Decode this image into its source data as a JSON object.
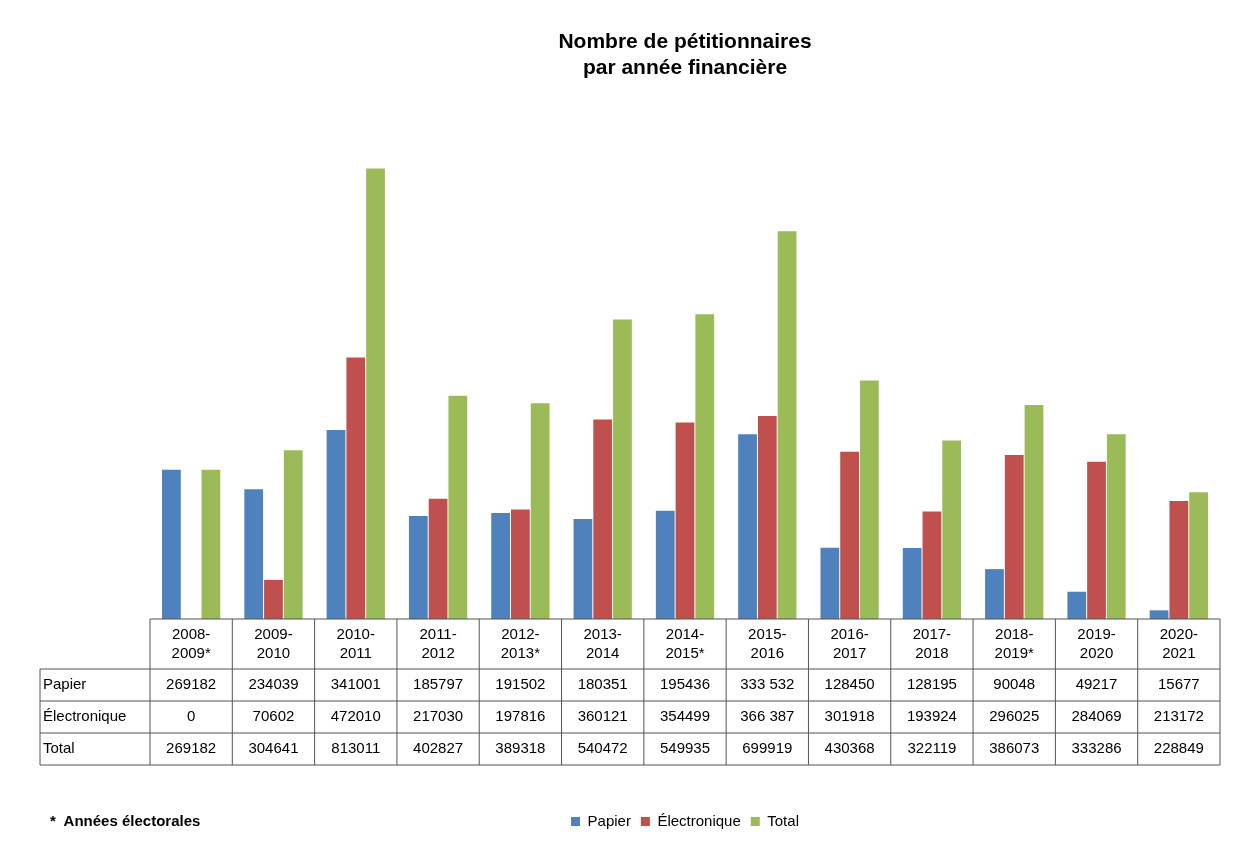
{
  "chart_data": {
    "type": "bar",
    "title": "Nombre de pétitionnaires\npar année financière",
    "categories": [
      "2008-2009*",
      "2009-2010",
      "2010-2011",
      "2011-2012",
      "2012-2013*",
      "2013-2014",
      "2014-2015*",
      "2015-2016",
      "2016-2017",
      "2017-2018",
      "2018-2019*",
      "2019-2020",
      "2020-2021"
    ],
    "series": [
      {
        "name": "Papier",
        "color": "#4f81bd",
        "values": [
          269182,
          234039,
          341001,
          185797,
          191502,
          180351,
          195436,
          333532,
          128450,
          128195,
          90048,
          49217,
          15677
        ],
        "value_labels": [
          "269182",
          "234039",
          "341001",
          "185797",
          "191502",
          "180351",
          "195436",
          "333 532",
          "128450",
          "128195",
          "90048",
          "49217",
          "15677"
        ]
      },
      {
        "name": "Électronique",
        "color": "#c0504d",
        "values": [
          0,
          70602,
          472010,
          217030,
          197816,
          360121,
          354499,
          366387,
          301918,
          193924,
          296025,
          284069,
          213172
        ],
        "value_labels": [
          "0",
          "70602",
          "472010",
          "217030",
          "197816",
          "360121",
          "354499",
          "366 387",
          "301918",
          "193924",
          "296025",
          "284069",
          "213172"
        ]
      },
      {
        "name": "Total",
        "color": "#9bbb59",
        "values": [
          269182,
          304641,
          813011,
          402827,
          389318,
          540472,
          549935,
          699919,
          430368,
          322119,
          386073,
          333286,
          228849
        ],
        "value_labels": [
          "269182",
          "304641",
          "813011",
          "402827",
          "389318",
          "540472",
          "549935",
          "699919",
          "430368",
          "322119",
          "386073",
          "333286",
          "228849"
        ]
      }
    ],
    "legend": "bottom",
    "grid": false,
    "annotations": [
      "*  Années électorales"
    ]
  }
}
